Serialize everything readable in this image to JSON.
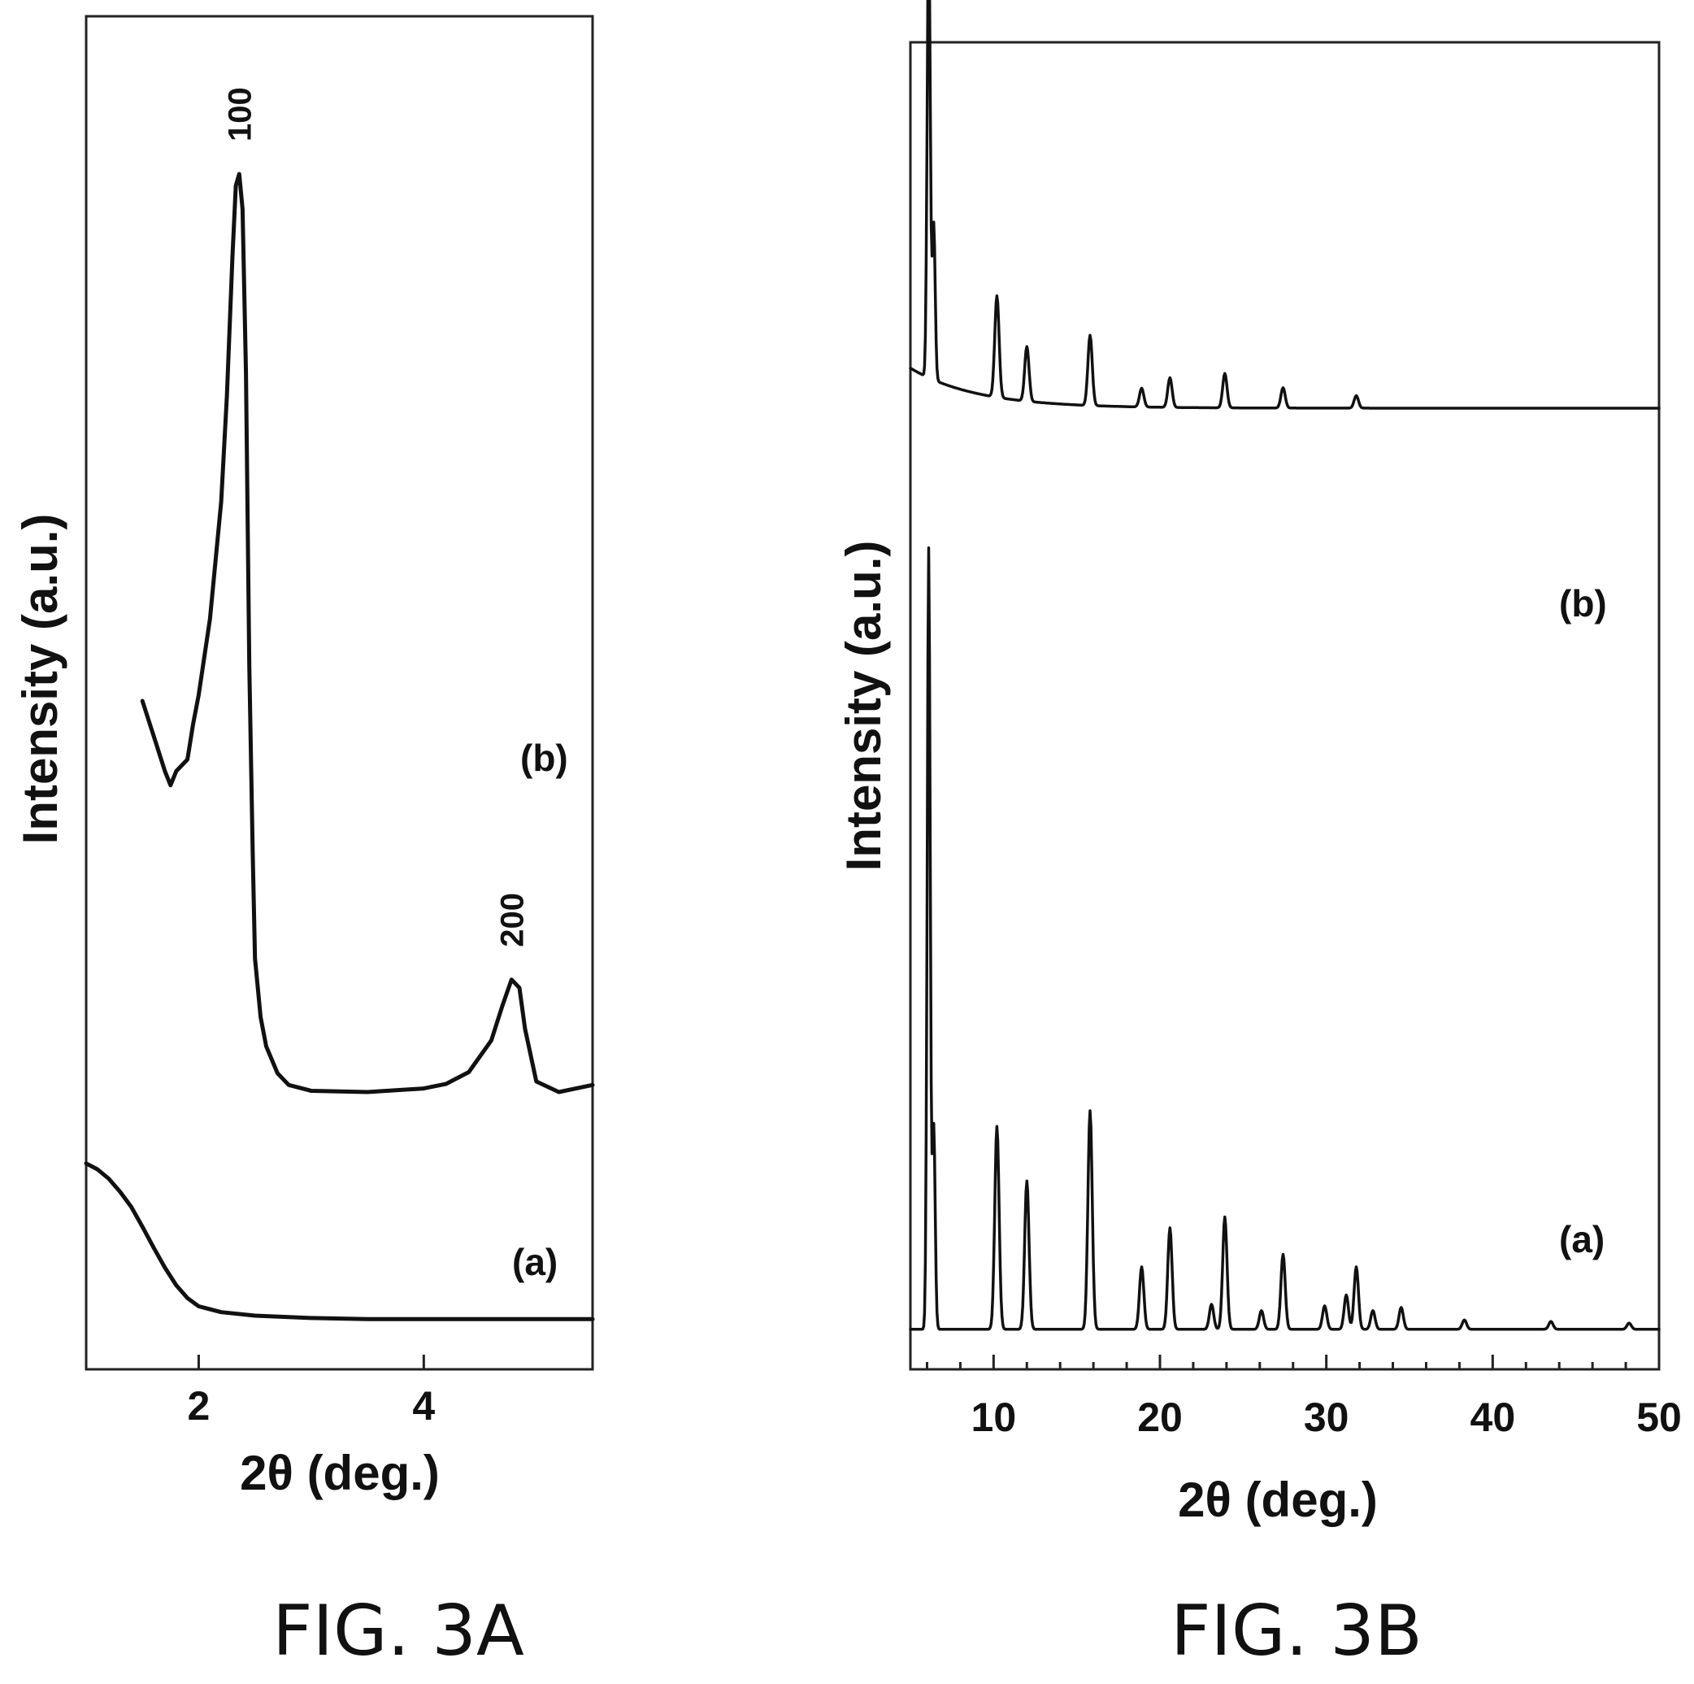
{
  "chart_data": [
    {
      "type": "line",
      "caption": "FIG. 3A",
      "xlabel": "2θ (deg.)",
      "ylabel": "Intensity (a.u.)",
      "xlim": [
        1,
        5.5
      ],
      "x_ticks": [
        2,
        4
      ],
      "x_tick_labels": [
        "2",
        "4"
      ],
      "y_ticks_visible": false,
      "grid": false,
      "series": [
        {
          "name": "(a)",
          "points": [
            [
              1.0,
              0.155
            ],
            [
              1.1,
              0.15
            ],
            [
              1.2,
              0.142
            ],
            [
              1.3,
              0.131
            ],
            [
              1.4,
              0.118
            ],
            [
              1.5,
              0.101
            ],
            [
              1.6,
              0.083
            ],
            [
              1.7,
              0.066
            ],
            [
              1.8,
              0.051
            ],
            [
              1.9,
              0.04
            ],
            [
              2.0,
              0.033
            ],
            [
              2.2,
              0.028
            ],
            [
              2.5,
              0.025
            ],
            [
              3.0,
              0.023
            ],
            [
              3.5,
              0.022
            ],
            [
              4.0,
              0.022
            ],
            [
              5.0,
              0.022
            ],
            [
              5.5,
              0.022
            ]
          ]
        },
        {
          "name": "(b)",
          "points": [
            [
              1.5,
              0.55
            ],
            [
              1.6,
              0.52
            ],
            [
              1.7,
              0.49
            ],
            [
              1.75,
              0.478
            ],
            [
              1.8,
              0.49
            ],
            [
              1.9,
              0.5
            ],
            [
              1.95,
              0.53
            ],
            [
              2.0,
              0.555
            ],
            [
              2.1,
              0.62
            ],
            [
              2.2,
              0.72
            ],
            [
              2.25,
              0.81
            ],
            [
              2.3,
              0.93
            ],
            [
              2.33,
              0.99
            ],
            [
              2.36,
              1.0
            ],
            [
              2.39,
              0.97
            ],
            [
              2.42,
              0.83
            ],
            [
              2.45,
              0.58
            ],
            [
              2.48,
              0.42
            ],
            [
              2.5,
              0.33
            ],
            [
              2.55,
              0.28
            ],
            [
              2.6,
              0.255
            ],
            [
              2.7,
              0.232
            ],
            [
              2.8,
              0.222
            ],
            [
              3.0,
              0.217
            ],
            [
              3.5,
              0.216
            ],
            [
              4.0,
              0.219
            ],
            [
              4.2,
              0.223
            ],
            [
              4.4,
              0.233
            ],
            [
              4.6,
              0.26
            ],
            [
              4.7,
              0.29
            ],
            [
              4.78,
              0.312
            ],
            [
              4.85,
              0.305
            ],
            [
              4.9,
              0.27
            ],
            [
              5.0,
              0.225
            ],
            [
              5.2,
              0.216
            ],
            [
              5.5,
              0.222
            ]
          ]
        }
      ],
      "series_labels": [
        "(b)",
        "(a)"
      ],
      "peak_labels": [
        {
          "label": "100",
          "x": 2.36
        },
        {
          "label": "200",
          "x": 4.78
        }
      ]
    },
    {
      "type": "line",
      "caption": "FIG. 3B",
      "xlabel": "2θ (deg.)",
      "ylabel": "Intensity (a.u.)",
      "xlim": [
        5,
        50
      ],
      "x_ticks": [
        10,
        20,
        30,
        40,
        50
      ],
      "x_tick_labels": [
        "10",
        "20",
        "30",
        "40",
        "50"
      ],
      "y_ticks_visible": false,
      "grid": false,
      "series": [
        {
          "name": "(a)",
          "baseline": 0.01,
          "peaks": [
            [
              6.1,
              0.5
            ],
            [
              6.4,
              0.13
            ],
            [
              10.2,
              0.13
            ],
            [
              12.0,
              0.095
            ],
            [
              15.8,
              0.14
            ],
            [
              18.9,
              0.04
            ],
            [
              20.6,
              0.065
            ],
            [
              23.1,
              0.016
            ],
            [
              23.9,
              0.072
            ],
            [
              26.1,
              0.012
            ],
            [
              27.4,
              0.048
            ],
            [
              29.9,
              0.015
            ],
            [
              31.2,
              0.022
            ],
            [
              31.8,
              0.04
            ],
            [
              32.8,
              0.012
            ],
            [
              34.5,
              0.014
            ],
            [
              38.3,
              0.006
            ],
            [
              43.5,
              0.005
            ],
            [
              48.2,
              0.004
            ]
          ]
        },
        {
          "name": "(b)",
          "baseline": 0.6,
          "peaks": [
            [
              6.1,
              0.295
            ],
            [
              6.4,
              0.1
            ],
            [
              10.2,
              0.065
            ],
            [
              12.0,
              0.035
            ],
            [
              15.8,
              0.045
            ],
            [
              18.9,
              0.012
            ],
            [
              20.6,
              0.019
            ],
            [
              23.9,
              0.022
            ],
            [
              27.4,
              0.013
            ],
            [
              31.8,
              0.008
            ]
          ]
        }
      ],
      "series_labels": [
        "(b)",
        "(a)"
      ]
    }
  ]
}
